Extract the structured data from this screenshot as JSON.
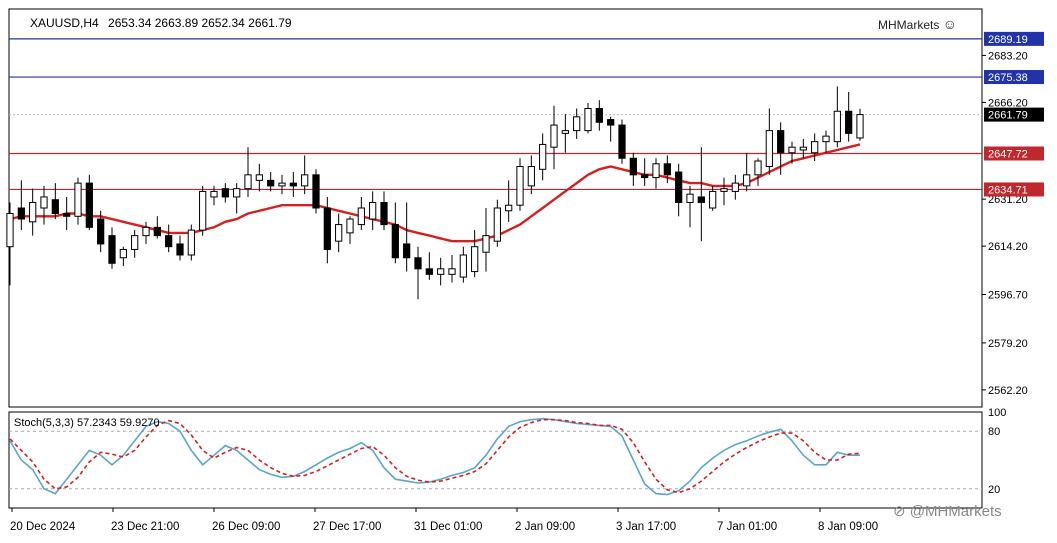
{
  "header": {
    "symbol_label": "XAUUSD,H4",
    "ohlc": "2653.34 2663.89 2652.34 2661.79",
    "brand": "MHMarkets",
    "watermark": "@MHMarkets"
  },
  "colors": {
    "bull_candle": "#ffffff",
    "bear_candle": "#000000",
    "ma_line": "#d42020",
    "blue_level": "#2233aa",
    "red_level": "#c0282d",
    "stoch_main": "#5aa7c4",
    "stoch_signal": "#d42020"
  },
  "chart_data": [
    {
      "type": "candlestick",
      "title": "XAUUSD,H4",
      "ylim": [
        2556,
        2700
      ],
      "y_ticks": [
        "2683.20",
        "2666.20",
        "2631.20",
        "2614.20",
        "2596.70",
        "2579.20",
        "2562.20"
      ],
      "x_tick_labels": [
        "20 Dec 2024",
        "23 Dec 21:00",
        "26 Dec 09:00",
        "27 Dec 17:00",
        "31 Dec 01:00",
        "2 Jan 09:00",
        "3 Jan 17:00",
        "7 Jan 01:00",
        "8 Jan 09:00"
      ],
      "last_price": "2661.79",
      "horizontal_levels": [
        {
          "value": 2689.19,
          "label": "2689.19",
          "color": "blue"
        },
        {
          "value": 2675.38,
          "label": "2675.38",
          "color": "blue"
        },
        {
          "value": 2647.72,
          "label": "2647.72",
          "color": "red"
        },
        {
          "value": 2634.71,
          "label": "2634.71",
          "color": "red"
        }
      ],
      "candles": [
        {
          "o": 2614,
          "h": 2630,
          "l": 2600,
          "c": 2626
        },
        {
          "o": 2628,
          "h": 2638,
          "l": 2620,
          "c": 2624
        },
        {
          "o": 2623,
          "h": 2635,
          "l": 2618,
          "c": 2630
        },
        {
          "o": 2628,
          "h": 2636,
          "l": 2622,
          "c": 2632
        },
        {
          "o": 2631,
          "h": 2637,
          "l": 2624,
          "c": 2626
        },
        {
          "o": 2626,
          "h": 2632,
          "l": 2620,
          "c": 2625
        },
        {
          "o": 2625,
          "h": 2639,
          "l": 2622,
          "c": 2637
        },
        {
          "o": 2637,
          "h": 2640,
          "l": 2620,
          "c": 2621
        },
        {
          "o": 2624,
          "h": 2627,
          "l": 2612,
          "c": 2615
        },
        {
          "o": 2618,
          "h": 2621,
          "l": 2606,
          "c": 2608
        },
        {
          "o": 2610,
          "h": 2614,
          "l": 2607,
          "c": 2613
        },
        {
          "o": 2613,
          "h": 2620,
          "l": 2610,
          "c": 2618
        },
        {
          "o": 2618,
          "h": 2623,
          "l": 2615,
          "c": 2621
        },
        {
          "o": 2621,
          "h": 2625,
          "l": 2617,
          "c": 2618
        },
        {
          "o": 2618,
          "h": 2622,
          "l": 2612,
          "c": 2614
        },
        {
          "o": 2615,
          "h": 2618,
          "l": 2609,
          "c": 2611
        },
        {
          "o": 2611,
          "h": 2622,
          "l": 2609,
          "c": 2620
        },
        {
          "o": 2620,
          "h": 2636,
          "l": 2618,
          "c": 2634
        },
        {
          "o": 2632,
          "h": 2636,
          "l": 2629,
          "c": 2634
        },
        {
          "o": 2635,
          "h": 2637,
          "l": 2630,
          "c": 2632
        },
        {
          "o": 2632,
          "h": 2637,
          "l": 2626,
          "c": 2635
        },
        {
          "o": 2635,
          "h": 2650,
          "l": 2632,
          "c": 2640
        },
        {
          "o": 2638,
          "h": 2644,
          "l": 2634,
          "c": 2640
        },
        {
          "o": 2638,
          "h": 2641,
          "l": 2634,
          "c": 2636
        },
        {
          "o": 2636,
          "h": 2640,
          "l": 2633,
          "c": 2637
        },
        {
          "o": 2637,
          "h": 2641,
          "l": 2632,
          "c": 2636
        },
        {
          "o": 2636,
          "h": 2647,
          "l": 2633,
          "c": 2640
        },
        {
          "o": 2640,
          "h": 2642,
          "l": 2626,
          "c": 2628
        },
        {
          "o": 2628,
          "h": 2632,
          "l": 2608,
          "c": 2613
        },
        {
          "o": 2616,
          "h": 2626,
          "l": 2612,
          "c": 2622
        },
        {
          "o": 2619,
          "h": 2625,
          "l": 2615,
          "c": 2624
        },
        {
          "o": 2622,
          "h": 2632,
          "l": 2620,
          "c": 2628
        },
        {
          "o": 2624,
          "h": 2634,
          "l": 2620,
          "c": 2630
        },
        {
          "o": 2630,
          "h": 2634,
          "l": 2620,
          "c": 2622
        },
        {
          "o": 2622,
          "h": 2630,
          "l": 2608,
          "c": 2610
        },
        {
          "o": 2615,
          "h": 2630,
          "l": 2605,
          "c": 2610
        },
        {
          "o": 2610,
          "h": 2614,
          "l": 2595,
          "c": 2606
        },
        {
          "o": 2606,
          "h": 2612,
          "l": 2602,
          "c": 2604
        },
        {
          "o": 2604,
          "h": 2610,
          "l": 2600,
          "c": 2606
        },
        {
          "o": 2604,
          "h": 2611,
          "l": 2601,
          "c": 2606
        },
        {
          "o": 2603,
          "h": 2614,
          "l": 2601,
          "c": 2611
        },
        {
          "o": 2605,
          "h": 2620,
          "l": 2603,
          "c": 2614
        },
        {
          "o": 2612,
          "h": 2628,
          "l": 2605,
          "c": 2618
        },
        {
          "o": 2616,
          "h": 2631,
          "l": 2614,
          "c": 2628
        },
        {
          "o": 2627,
          "h": 2638,
          "l": 2623,
          "c": 2629
        },
        {
          "o": 2629,
          "h": 2646,
          "l": 2627,
          "c": 2643
        },
        {
          "o": 2636,
          "h": 2647,
          "l": 2633,
          "c": 2643
        },
        {
          "o": 2642,
          "h": 2655,
          "l": 2638,
          "c": 2651
        },
        {
          "o": 2650,
          "h": 2665,
          "l": 2642,
          "c": 2658
        },
        {
          "o": 2655,
          "h": 2662,
          "l": 2648,
          "c": 2656
        },
        {
          "o": 2656,
          "h": 2664,
          "l": 2653,
          "c": 2661
        },
        {
          "o": 2656,
          "h": 2666,
          "l": 2655,
          "c": 2664
        },
        {
          "o": 2664,
          "h": 2667,
          "l": 2656,
          "c": 2659
        },
        {
          "o": 2660,
          "h": 2661,
          "l": 2652,
          "c": 2658
        },
        {
          "o": 2658,
          "h": 2660,
          "l": 2644,
          "c": 2646
        },
        {
          "o": 2646,
          "h": 2648,
          "l": 2636,
          "c": 2640
        },
        {
          "o": 2640,
          "h": 2646,
          "l": 2636,
          "c": 2639
        },
        {
          "o": 2639,
          "h": 2646,
          "l": 2635,
          "c": 2644
        },
        {
          "o": 2644,
          "h": 2647,
          "l": 2637,
          "c": 2640
        },
        {
          "o": 2641,
          "h": 2644,
          "l": 2625,
          "c": 2630
        },
        {
          "o": 2630,
          "h": 2636,
          "l": 2621,
          "c": 2633
        },
        {
          "o": 2632,
          "h": 2650,
          "l": 2616,
          "c": 2630
        },
        {
          "o": 2628,
          "h": 2636,
          "l": 2627,
          "c": 2634
        },
        {
          "o": 2634,
          "h": 2639,
          "l": 2629,
          "c": 2635
        },
        {
          "o": 2634,
          "h": 2640,
          "l": 2631,
          "c": 2637
        },
        {
          "o": 2636,
          "h": 2648,
          "l": 2634,
          "c": 2640
        },
        {
          "o": 2640,
          "h": 2646,
          "l": 2636,
          "c": 2645
        },
        {
          "o": 2643,
          "h": 2664,
          "l": 2640,
          "c": 2656
        },
        {
          "o": 2656,
          "h": 2659,
          "l": 2640,
          "c": 2648
        },
        {
          "o": 2648,
          "h": 2652,
          "l": 2644,
          "c": 2650
        },
        {
          "o": 2649,
          "h": 2653,
          "l": 2646,
          "c": 2650
        },
        {
          "o": 2648,
          "h": 2655,
          "l": 2645,
          "c": 2652
        },
        {
          "o": 2652,
          "h": 2656,
          "l": 2648,
          "c": 2654
        },
        {
          "o": 2652,
          "h": 2672,
          "l": 2650,
          "c": 2663
        },
        {
          "o": 2663,
          "h": 2670,
          "l": 2652,
          "c": 2655
        },
        {
          "o": 2653.34,
          "h": 2663.89,
          "l": 2652.34,
          "c": 2661.79
        }
      ],
      "ma_series": {
        "period_note": "",
        "values": [
          2624,
          2625,
          2625,
          2625,
          2625,
          2626,
          2626,
          2625,
          2625,
          2624,
          2623,
          2622,
          2621,
          2620,
          2619,
          2619,
          2619,
          2620,
          2621,
          2623,
          2624,
          2626,
          2627,
          2628,
          2629,
          2629,
          2629,
          2629,
          2628,
          2627,
          2626,
          2625,
          2624,
          2623,
          2622,
          2620,
          2619,
          2618,
          2617,
          2616,
          2616,
          2616,
          2617,
          2618,
          2620,
          2622,
          2625,
          2628,
          2631,
          2634,
          2637,
          2640,
          2642,
          2643,
          2642,
          2641,
          2640,
          2640,
          2639,
          2638,
          2637,
          2637,
          2636,
          2636,
          2636,
          2637,
          2639,
          2641,
          2643,
          2645,
          2646,
          2647,
          2648,
          2649,
          2650,
          2651
        ]
      }
    },
    {
      "type": "line",
      "title": "Stoch(5,3,3) 57.2343 59.9270",
      "ylim": [
        0,
        100
      ],
      "y_ticks": [
        "100",
        "80",
        "20"
      ],
      "levels": [
        80,
        20
      ],
      "series": [
        {
          "name": "",
          "color": "main",
          "values": [
            70,
            50,
            40,
            20,
            15,
            30,
            45,
            60,
            55,
            45,
            55,
            70,
            85,
            90,
            88,
            80,
            60,
            45,
            55,
            65,
            60,
            50,
            40,
            35,
            32,
            33,
            38,
            45,
            52,
            58,
            62,
            68,
            60,
            42,
            30,
            28,
            26,
            27,
            30,
            34,
            37,
            42,
            55,
            72,
            85,
            90,
            92,
            93,
            92,
            90,
            88,
            87,
            86,
            85,
            75,
            50,
            25,
            15,
            14,
            18,
            28,
            42,
            52,
            60,
            66,
            70,
            75,
            79,
            82,
            70,
            55,
            45,
            45,
            58,
            55,
            55
          ]
        },
        {
          "name": "",
          "color": "signal",
          "values": [
            72,
            60,
            48,
            30,
            20,
            22,
            32,
            48,
            58,
            56,
            53,
            60,
            74,
            86,
            91,
            88,
            76,
            60,
            52,
            58,
            63,
            60,
            50,
            42,
            36,
            33,
            34,
            38,
            44,
            50,
            56,
            62,
            64,
            55,
            42,
            33,
            29,
            27,
            28,
            31,
            34,
            38,
            46,
            60,
            74,
            84,
            89,
            92,
            92,
            91,
            89,
            88,
            86,
            86,
            82,
            68,
            48,
            30,
            19,
            16,
            20,
            28,
            38,
            48,
            56,
            63,
            69,
            74,
            78,
            78,
            70,
            58,
            50,
            50,
            56,
            57
          ]
        }
      ]
    }
  ]
}
